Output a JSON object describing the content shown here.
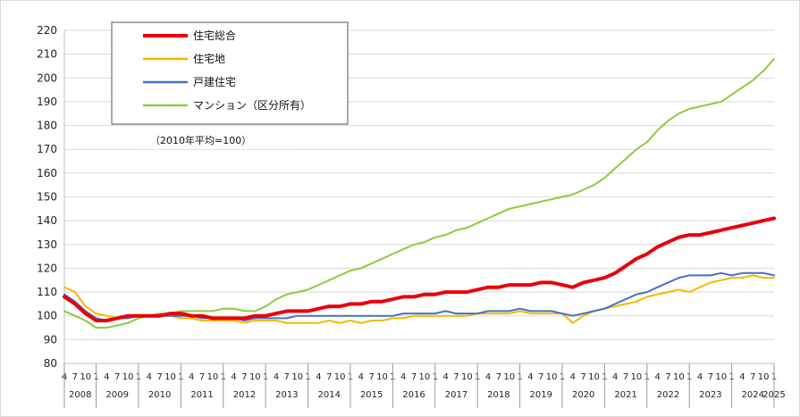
{
  "chart_data": {
    "type": "line",
    "title": "",
    "xlabel": "",
    "ylabel": "",
    "ylim": [
      80,
      220
    ],
    "yticks": [
      80,
      90,
      100,
      110,
      120,
      130,
      140,
      150,
      160,
      170,
      180,
      190,
      200,
      210,
      220
    ],
    "x_start": "2008-04",
    "x_end": "2025-01",
    "month_tick_labels": [
      "4",
      "7",
      "10",
      "1"
    ],
    "year_labels": [
      "2008",
      "2009",
      "2010",
      "2011",
      "2012",
      "2013",
      "2014",
      "2015",
      "2016",
      "2017",
      "2018",
      "2019",
      "2020",
      "2021",
      "2022",
      "2023",
      "2024",
      "2025"
    ],
    "note": "（2010年平均=100）",
    "grid": "horizontal",
    "legend_position": "top-left",
    "series": [
      {
        "name": "住宅総合",
        "color": "#e8000b",
        "x": [
          "2008-04",
          "2008-07",
          "2008-10",
          "2009-01",
          "2009-04",
          "2009-07",
          "2009-10",
          "2010-01",
          "2010-04",
          "2010-07",
          "2010-10",
          "2011-01",
          "2011-04",
          "2011-07",
          "2011-10",
          "2012-01",
          "2012-04",
          "2012-07",
          "2012-10",
          "2013-01",
          "2013-04",
          "2013-07",
          "2013-10",
          "2014-01",
          "2014-04",
          "2014-07",
          "2014-10",
          "2015-01",
          "2015-04",
          "2015-07",
          "2015-10",
          "2016-01",
          "2016-04",
          "2016-07",
          "2016-10",
          "2017-01",
          "2017-04",
          "2017-07",
          "2017-10",
          "2018-01",
          "2018-04",
          "2018-07",
          "2018-10",
          "2019-01",
          "2019-04",
          "2019-07",
          "2019-10",
          "2020-01",
          "2020-04",
          "2020-07",
          "2020-10",
          "2021-01",
          "2021-04",
          "2021-07",
          "2021-10",
          "2022-01",
          "2022-04",
          "2022-07",
          "2022-10",
          "2023-01",
          "2023-04",
          "2023-07",
          "2023-10",
          "2024-01",
          "2024-04",
          "2024-07",
          "2024-10",
          "2025-01"
        ],
        "values": [
          108,
          105,
          101,
          98,
          98,
          99,
          100,
          100,
          100,
          100,
          101,
          101,
          100,
          100,
          99,
          99,
          99,
          99,
          100,
          100,
          101,
          102,
          102,
          102,
          103,
          104,
          104,
          105,
          105,
          106,
          106,
          107,
          108,
          108,
          109,
          109,
          110,
          110,
          110,
          111,
          112,
          112,
          113,
          113,
          113,
          114,
          114,
          113,
          112,
          114,
          115,
          116,
          118,
          121,
          124,
          126,
          129,
          131,
          133,
          134,
          134,
          135,
          136,
          137,
          138,
          139,
          140,
          141
        ]
      },
      {
        "name": "住宅地",
        "color": "#f5b800",
        "x": [
          "2008-04",
          "2008-07",
          "2008-10",
          "2009-01",
          "2009-04",
          "2009-07",
          "2009-10",
          "2010-01",
          "2010-04",
          "2010-07",
          "2010-10",
          "2011-01",
          "2011-04",
          "2011-07",
          "2011-10",
          "2012-01",
          "2012-04",
          "2012-07",
          "2012-10",
          "2013-01",
          "2013-04",
          "2013-07",
          "2013-10",
          "2014-01",
          "2014-04",
          "2014-07",
          "2014-10",
          "2015-01",
          "2015-04",
          "2015-07",
          "2015-10",
          "2016-01",
          "2016-04",
          "2016-07",
          "2016-10",
          "2017-01",
          "2017-04",
          "2017-07",
          "2017-10",
          "2018-01",
          "2018-04",
          "2018-07",
          "2018-10",
          "2019-01",
          "2019-04",
          "2019-07",
          "2019-10",
          "2020-01",
          "2020-04",
          "2020-07",
          "2020-10",
          "2021-01",
          "2021-04",
          "2021-07",
          "2021-10",
          "2022-01",
          "2022-04",
          "2022-07",
          "2022-10",
          "2023-01",
          "2023-04",
          "2023-07",
          "2023-10",
          "2024-01",
          "2024-04",
          "2024-07",
          "2024-10",
          "2025-01"
        ],
        "values": [
          112,
          110,
          104,
          101,
          100,
          99,
          99,
          100,
          100,
          100,
          100,
          99,
          99,
          98,
          98,
          98,
          98,
          97,
          98,
          98,
          98,
          97,
          97,
          97,
          97,
          98,
          97,
          98,
          97,
          98,
          98,
          99,
          99,
          100,
          100,
          100,
          100,
          100,
          100,
          101,
          101,
          101,
          101,
          102,
          101,
          101,
          101,
          101,
          97,
          100,
          102,
          103,
          104,
          105,
          106,
          108,
          109,
          110,
          111,
          110,
          112,
          114,
          115,
          116,
          116,
          117,
          116,
          116
        ]
      },
      {
        "name": "戸建住宅",
        "color": "#4472c4",
        "x": [
          "2008-04",
          "2008-07",
          "2008-10",
          "2009-01",
          "2009-04",
          "2009-07",
          "2009-10",
          "2010-01",
          "2010-04",
          "2010-07",
          "2010-10",
          "2011-01",
          "2011-04",
          "2011-07",
          "2011-10",
          "2012-01",
          "2012-04",
          "2012-07",
          "2012-10",
          "2013-01",
          "2013-04",
          "2013-07",
          "2013-10",
          "2014-01",
          "2014-04",
          "2014-07",
          "2014-10",
          "2015-01",
          "2015-04",
          "2015-07",
          "2015-10",
          "2016-01",
          "2016-04",
          "2016-07",
          "2016-10",
          "2017-01",
          "2017-04",
          "2017-07",
          "2017-10",
          "2018-01",
          "2018-04",
          "2018-07",
          "2018-10",
          "2019-01",
          "2019-04",
          "2019-07",
          "2019-10",
          "2020-01",
          "2020-04",
          "2020-07",
          "2020-10",
          "2021-01",
          "2021-04",
          "2021-07",
          "2021-10",
          "2022-01",
          "2022-04",
          "2022-07",
          "2022-10",
          "2023-01",
          "2023-04",
          "2023-07",
          "2023-10",
          "2024-01",
          "2024-04",
          "2024-07",
          "2024-10",
          "2025-01"
        ],
        "values": [
          109,
          106,
          102,
          99,
          98,
          99,
          99,
          100,
          100,
          100,
          100,
          100,
          100,
          99,
          99,
          99,
          99,
          98,
          99,
          99,
          99,
          99,
          100,
          100,
          100,
          100,
          100,
          100,
          100,
          100,
          100,
          100,
          101,
          101,
          101,
          101,
          102,
          101,
          101,
          101,
          102,
          102,
          102,
          103,
          102,
          102,
          102,
          101,
          100,
          101,
          102,
          103,
          105,
          107,
          109,
          110,
          112,
          114,
          116,
          117,
          117,
          117,
          118,
          117,
          118,
          118,
          118,
          117
        ]
      },
      {
        "name": "マンション（区分所有）",
        "color": "#8ccb3f",
        "x": [
          "2008-04",
          "2008-07",
          "2008-10",
          "2009-01",
          "2009-04",
          "2009-07",
          "2009-10",
          "2010-01",
          "2010-04",
          "2010-07",
          "2010-10",
          "2011-01",
          "2011-04",
          "2011-07",
          "2011-10",
          "2012-01",
          "2012-04",
          "2012-07",
          "2012-10",
          "2013-01",
          "2013-04",
          "2013-07",
          "2013-10",
          "2014-01",
          "2014-04",
          "2014-07",
          "2014-10",
          "2015-01",
          "2015-04",
          "2015-07",
          "2015-10",
          "2016-01",
          "2016-04",
          "2016-07",
          "2016-10",
          "2017-01",
          "2017-04",
          "2017-07",
          "2017-10",
          "2018-01",
          "2018-04",
          "2018-07",
          "2018-10",
          "2019-01",
          "2019-04",
          "2019-07",
          "2019-10",
          "2020-01",
          "2020-04",
          "2020-07",
          "2020-10",
          "2021-01",
          "2021-04",
          "2021-07",
          "2021-10",
          "2022-01",
          "2022-04",
          "2022-07",
          "2022-10",
          "2023-01",
          "2023-04",
          "2023-07",
          "2023-10",
          "2024-01",
          "2024-04",
          "2024-07",
          "2024-10",
          "2025-01"
        ],
        "values": [
          102,
          100,
          98,
          95,
          95,
          96,
          97,
          99,
          100,
          101,
          101,
          102,
          102,
          102,
          102,
          103,
          103,
          102,
          102,
          104,
          107,
          109,
          110,
          111,
          113,
          115,
          117,
          119,
          120,
          122,
          124,
          126,
          128,
          130,
          131,
          133,
          134,
          136,
          137,
          139,
          141,
          143,
          145,
          146,
          147,
          148,
          149,
          150,
          151,
          153,
          155,
          158,
          162,
          166,
          170,
          173,
          178,
          182,
          185,
          187,
          188,
          189,
          190,
          193,
          196,
          199,
          203,
          208
        ]
      }
    ]
  },
  "legend": {
    "items": [
      "住宅総合",
      "住宅地",
      "戸建住宅",
      "マンション（区分所有）"
    ]
  }
}
